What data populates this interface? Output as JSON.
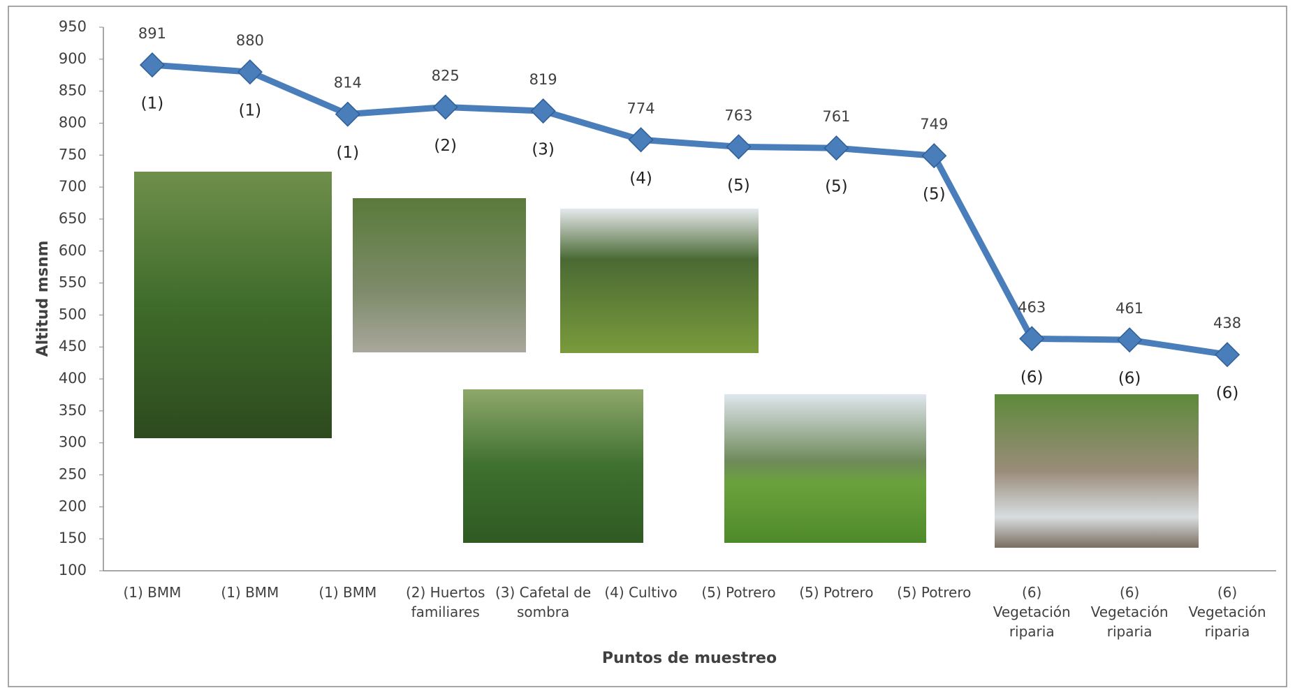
{
  "chart_data": {
    "type": "line",
    "y_label": "Altitud msnm",
    "x_label": "Puntos de muestreo",
    "categories": [
      "(1) BMM",
      "(1) BMM",
      "(1) BMM",
      "(2) Huertos familiares",
      "(3) Cafetal de sombra",
      "(4) Cultivo",
      "(5) Potrero",
      "(5) Potrero",
      "(5) Potrero",
      "(6) Vegetación riparia",
      "(6) Vegetación riparia",
      "(6) Vegetación riparia"
    ],
    "values": [
      891,
      880,
      814,
      825,
      819,
      774,
      763,
      761,
      749,
      463,
      461,
      438
    ],
    "annotations": [
      "(1)",
      "(1)",
      "(1)",
      "(2)",
      "(3)",
      "(4)",
      "(5)",
      "(5)",
      "(5)",
      "(6)",
      "(6)",
      "(6)"
    ],
    "color": "#4a7ebb",
    "ylim": [
      100,
      950
    ],
    "yticks": [
      100,
      150,
      200,
      250,
      300,
      350,
      400,
      450,
      500,
      550,
      600,
      650,
      700,
      750,
      800,
      850,
      900,
      950
    ],
    "grid": false
  }
}
